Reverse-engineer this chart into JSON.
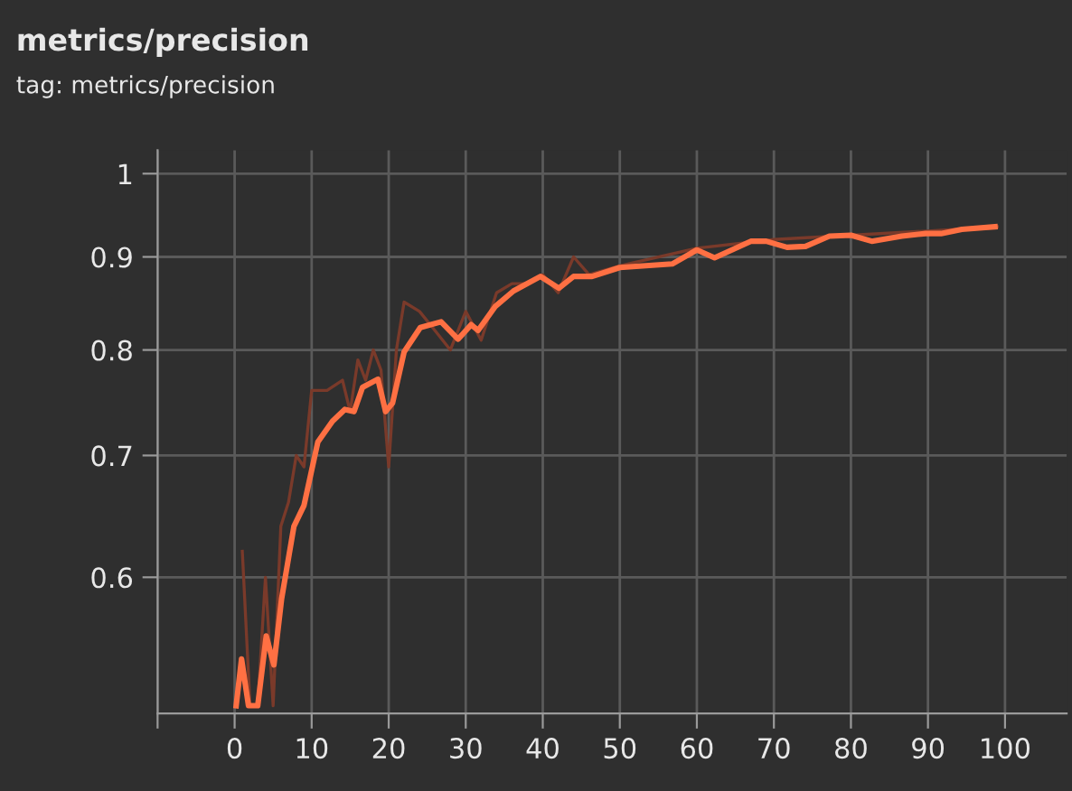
{
  "chart_data": {
    "type": "line",
    "title": "metrics/precision",
    "subtitle": "tag: metrics/precision",
    "log": "y",
    "grid": true,
    "xlim": [
      -10,
      108
    ],
    "ylim": [
      0.505,
      1.03
    ],
    "xticks": [
      {
        "value": -10,
        "label": null
      },
      0,
      10,
      20,
      30,
      40,
      50,
      60,
      70,
      80,
      90,
      100
    ],
    "yticks": [
      0.6,
      0.7,
      0.8,
      0.9,
      1
    ],
    "series": [
      {
        "color": "#7a3a2a",
        "x": [
          1,
          2,
          3,
          4,
          5,
          6,
          7,
          8,
          9,
          10,
          12,
          14,
          15,
          16,
          17,
          18,
          19,
          20,
          21,
          22,
          24,
          26,
          28,
          30,
          32,
          34,
          36,
          38,
          40,
          42,
          44,
          46,
          50,
          60,
          70,
          80,
          90,
          99
        ],
        "values": [
          0.62,
          0.51,
          0.51,
          0.6,
          0.51,
          0.64,
          0.66,
          0.7,
          0.69,
          0.76,
          0.76,
          0.77,
          0.74,
          0.79,
          0.77,
          0.8,
          0.78,
          0.69,
          0.8,
          0.85,
          0.84,
          0.82,
          0.8,
          0.84,
          0.81,
          0.86,
          0.87,
          0.87,
          0.88,
          0.86,
          0.9,
          0.88,
          0.89,
          0.91,
          0.92,
          0.925,
          0.93,
          0.935
        ]
      },
      {
        "color": "#ff7043",
        "x": [
          0.2,
          0.9,
          1.8,
          3.0,
          4.1,
          5.1,
          6.1,
          7.7,
          9.0,
          10.8,
          12.7,
          14.3,
          15.5,
          16.6,
          18.6,
          19.6,
          20.5,
          22.0,
          24.1,
          26.8,
          29.0,
          30.7,
          31.6,
          33.8,
          36.2,
          39.7,
          42.1,
          44.0,
          46.4,
          50,
          56.8,
          60,
          62.3,
          67,
          69,
          71.7,
          74.1,
          77.2,
          80,
          82.7,
          86.6,
          89.7,
          91.7,
          94.4,
          98.7
        ],
        "values": [
          0.51,
          0.541,
          0.51,
          0.51,
          0.557,
          0.537,
          0.584,
          0.64,
          0.657,
          0.712,
          0.731,
          0.742,
          0.74,
          0.763,
          0.771,
          0.74,
          0.748,
          0.798,
          0.823,
          0.829,
          0.811,
          0.826,
          0.82,
          0.845,
          0.862,
          0.878,
          0.865,
          0.878,
          0.878,
          0.888,
          0.892,
          0.908,
          0.899,
          0.918,
          0.918,
          0.911,
          0.912,
          0.924,
          0.925,
          0.918,
          0.924,
          0.927,
          0.927,
          0.932,
          0.935
        ]
      }
    ]
  }
}
